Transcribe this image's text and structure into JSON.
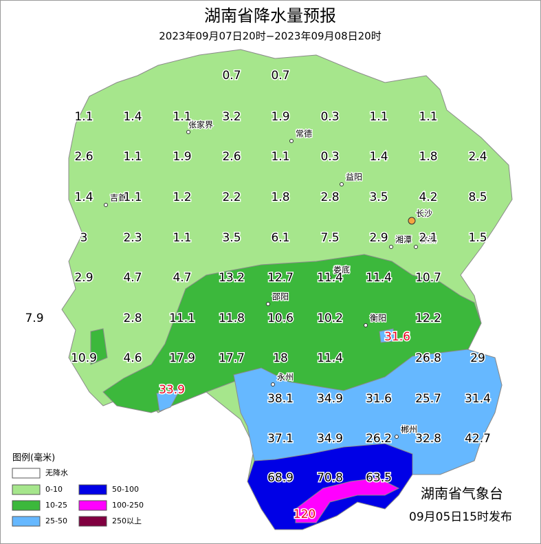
{
  "header": {
    "title": "湖南省降水量预报",
    "subtitle": "2023年09月07日20时−2023年09月08日20时"
  },
  "readings": [
    {
      "text": "0.7",
      "color": "#000000"
    },
    {
      "text": "0.7",
      "color": "#000000"
    },
    {
      "text": "1.1",
      "color": "#000000"
    },
    {
      "text": "1.4",
      "color": "#000000"
    },
    {
      "text": "1.1",
      "color": "#000000"
    },
    {
      "text": "3.2",
      "color": "#000000"
    },
    {
      "text": "1.9",
      "color": "#000000"
    },
    {
      "text": "0.3",
      "color": "#000000"
    },
    {
      "text": "1.1",
      "color": "#000000"
    },
    {
      "text": "1.1",
      "color": "#000000"
    },
    {
      "text": "2.6",
      "color": "#000000"
    },
    {
      "text": "1.1",
      "color": "#000000"
    },
    {
      "text": "1.9",
      "color": "#000000"
    },
    {
      "text": "2.6",
      "color": "#000000"
    },
    {
      "text": "1.1",
      "color": "#000000"
    },
    {
      "text": "0.3",
      "color": "#000000"
    },
    {
      "text": "1.4",
      "color": "#000000"
    },
    {
      "text": "1.8",
      "color": "#000000"
    },
    {
      "text": "2.4",
      "color": "#000000"
    },
    {
      "text": "1.4",
      "color": "#000000"
    },
    {
      "text": "1.1",
      "color": "#000000"
    },
    {
      "text": "1.2",
      "color": "#000000"
    },
    {
      "text": "2.2",
      "color": "#000000"
    },
    {
      "text": "1.8",
      "color": "#000000"
    },
    {
      "text": "2.8",
      "color": "#000000"
    },
    {
      "text": "3.5",
      "color": "#000000"
    },
    {
      "text": "4.2",
      "color": "#000000"
    },
    {
      "text": "8.5",
      "color": "#000000"
    },
    {
      "text": "3",
      "color": "#000000"
    },
    {
      "text": "2.3",
      "color": "#000000"
    },
    {
      "text": "1.1",
      "color": "#000000"
    },
    {
      "text": "3.5",
      "color": "#000000"
    },
    {
      "text": "6.1",
      "color": "#000000"
    },
    {
      "text": "7.5",
      "color": "#000000"
    },
    {
      "text": "2.9",
      "color": "#000000"
    },
    {
      "text": "2.1",
      "color": "#000000"
    },
    {
      "text": "1.5",
      "color": "#000000"
    },
    {
      "text": "2.9",
      "color": "#000000"
    },
    {
      "text": "4.7",
      "color": "#000000"
    },
    {
      "text": "4.7",
      "color": "#000000"
    },
    {
      "text": "13.2",
      "color": "#000000"
    },
    {
      "text": "12.7",
      "color": "#000000"
    },
    {
      "text": "11.4",
      "color": "#000000"
    },
    {
      "text": "11.4",
      "color": "#000000"
    },
    {
      "text": "10.7",
      "color": "#000000"
    },
    {
      "text": "7.9",
      "color": "#000000"
    },
    {
      "text": "2.8",
      "color": "#000000"
    },
    {
      "text": "11.1",
      "color": "#000000"
    },
    {
      "text": "11.8",
      "color": "#000000"
    },
    {
      "text": "10.6",
      "color": "#000000"
    },
    {
      "text": "10.2",
      "color": "#000000"
    },
    {
      "text": "31.6",
      "color": "#e8001c"
    },
    {
      "text": "12.2",
      "color": "#000000"
    },
    {
      "text": "10.9",
      "color": "#000000"
    },
    {
      "text": "4.6",
      "color": "#000000"
    },
    {
      "text": "17.9",
      "color": "#000000"
    },
    {
      "text": "17.7",
      "color": "#000000"
    },
    {
      "text": "18",
      "color": "#000000"
    },
    {
      "text": "11.4",
      "color": "#000000"
    },
    {
      "text": "26.8",
      "color": "#000000"
    },
    {
      "text": "29",
      "color": "#000000"
    },
    {
      "text": "33.9",
      "color": "#e8001c"
    },
    {
      "text": "38.1",
      "color": "#000000"
    },
    {
      "text": "34.9",
      "color": "#000000"
    },
    {
      "text": "31.6",
      "color": "#000000"
    },
    {
      "text": "25.7",
      "color": "#000000"
    },
    {
      "text": "31.4",
      "color": "#000000"
    },
    {
      "text": "37.1",
      "color": "#000000"
    },
    {
      "text": "34.9",
      "color": "#000000"
    },
    {
      "text": "26.2",
      "color": "#000000"
    },
    {
      "text": "32.8",
      "color": "#000000"
    },
    {
      "text": "42.7",
      "color": "#000000"
    },
    {
      "text": "68.9",
      "color": "#000000"
    },
    {
      "text": "70.8",
      "color": "#000000"
    },
    {
      "text": "63.5",
      "color": "#000000"
    },
    {
      "text": "120",
      "color": "#e8001c"
    }
  ],
  "cities": [
    "张家界",
    "常德",
    "益阳",
    "吉首",
    "长沙",
    "湘潭",
    "株洲",
    "娄底",
    "邵阳",
    "衡阳",
    "永州",
    "郴州"
  ],
  "legend": {
    "title": "图例(毫米)",
    "items": [
      {
        "label": "无降水",
        "color": "#ffffff"
      },
      {
        "label": "0-10",
        "color": "#a6e68c"
      },
      {
        "label": "10-25",
        "color": "#3cb83c"
      },
      {
        "label": "25-50",
        "color": "#66b8ff"
      },
      {
        "label": "50-100",
        "color": "#0000e6"
      },
      {
        "label": "100-250",
        "color": "#ff00ff"
      },
      {
        "label": "250以上",
        "color": "#800040"
      }
    ]
  },
  "footer": {
    "agency": "湖南省气象台",
    "issued": "09月05日15时发布"
  }
}
